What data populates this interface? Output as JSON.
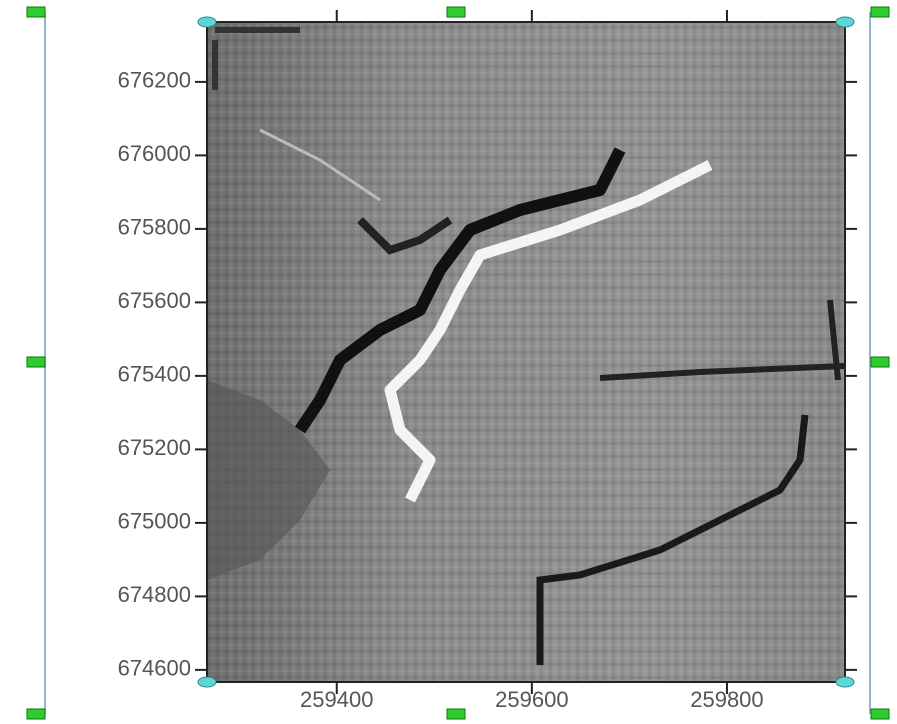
{
  "chart_data": {
    "type": "map",
    "xlim": [
      259267,
      259921
    ],
    "ylim": [
      674567,
      676363
    ],
    "xticks": [
      259400,
      259600,
      259800
    ],
    "yticks": [
      674600,
      674800,
      675000,
      675200,
      675400,
      675600,
      675800,
      676000,
      676200
    ]
  }
}
